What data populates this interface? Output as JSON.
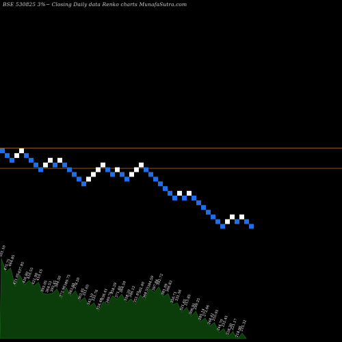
{
  "header": {
    "title": "BSE 530825 3%~   Closing Daily data  Renko  charts MunafaSutra.com"
  },
  "chart_data": {
    "type": "renko",
    "title": "BSE 530825 3%~   Closing Daily data  Renko  charts MunafaSutra.com",
    "colors": {
      "up": "#ffffff",
      "down": "#1f6fe8",
      "reference_line": "#8a5a1a",
      "volume_fill": "#0b3d0b",
      "background": "#000000"
    },
    "reference_lines": [
      0,
      -4
    ],
    "bricks": [
      {
        "dir": "down",
        "level": 0
      },
      {
        "dir": "down",
        "level": -1
      },
      {
        "dir": "down",
        "level": -2
      },
      {
        "dir": "up",
        "level": -1
      },
      {
        "dir": "up",
        "level": 0
      },
      {
        "dir": "down",
        "level": -1
      },
      {
        "dir": "down",
        "level": -2
      },
      {
        "dir": "down",
        "level": -3
      },
      {
        "dir": "down",
        "level": -4
      },
      {
        "dir": "up",
        "level": -3
      },
      {
        "dir": "up",
        "level": -2
      },
      {
        "dir": "down",
        "level": -3
      },
      {
        "dir": "up",
        "level": -2
      },
      {
        "dir": "down",
        "level": -3
      },
      {
        "dir": "down",
        "level": -4
      },
      {
        "dir": "down",
        "level": -5
      },
      {
        "dir": "down",
        "level": -6
      },
      {
        "dir": "down",
        "level": -7
      },
      {
        "dir": "up",
        "level": -6
      },
      {
        "dir": "up",
        "level": -5
      },
      {
        "dir": "up",
        "level": -4
      },
      {
        "dir": "up",
        "level": -3
      },
      {
        "dir": "down",
        "level": -4
      },
      {
        "dir": "down",
        "level": -5
      },
      {
        "dir": "up",
        "level": -4
      },
      {
        "dir": "down",
        "level": -5
      },
      {
        "dir": "down",
        "level": -6
      },
      {
        "dir": "up",
        "level": -5
      },
      {
        "dir": "up",
        "level": -4
      },
      {
        "dir": "up",
        "level": -3
      },
      {
        "dir": "down",
        "level": -4
      },
      {
        "dir": "down",
        "level": -5
      },
      {
        "dir": "down",
        "level": -6
      },
      {
        "dir": "down",
        "level": -7
      },
      {
        "dir": "down",
        "level": -8
      },
      {
        "dir": "down",
        "level": -9
      },
      {
        "dir": "down",
        "level": -10
      },
      {
        "dir": "up",
        "level": -9
      },
      {
        "dir": "down",
        "level": -10
      },
      {
        "dir": "up",
        "level": -9
      },
      {
        "dir": "down",
        "level": -10
      },
      {
        "dir": "down",
        "level": -11
      },
      {
        "dir": "down",
        "level": -12
      },
      {
        "dir": "down",
        "level": -13
      },
      {
        "dir": "down",
        "level": -14
      },
      {
        "dir": "down",
        "level": -15
      },
      {
        "dir": "down",
        "level": -16
      },
      {
        "dir": "up",
        "level": -15
      },
      {
        "dir": "up",
        "level": -14
      },
      {
        "dir": "down",
        "level": -15
      },
      {
        "dir": "up",
        "level": -14
      },
      {
        "dir": "down",
        "level": -15
      },
      {
        "dir": "down",
        "level": -16
      }
    ],
    "volume_labels": [
      "501.10",
      "475.75",
      "464.85",
      "421.05",
      "437.85",
      "426.80",
      "416.55",
      "421.90",
      "410.15",
      "393.05",
      "364.53",
      "393.45",
      "384.50",
      "372.96",
      "389.75",
      "383.60",
      "378.20",
      "363.45",
      "351.65",
      "343.10",
      "331.76",
      "324.48",
      "336.41",
      "349.75",
      "358.29",
      "371.40",
      "364.50",
      "358.20",
      "346.12",
      "351.87",
      "361.40",
      "368.55",
      "384.59",
      "397.84",
      "392.72",
      "381.09",
      "366.83",
      "350.71",
      "331.56",
      "321.65",
      "313.85",
      "306.91",
      "299.25",
      "285.14",
      "272.66",
      "268.41",
      "255.91",
      "244.70",
      "232.45",
      "228.30",
      "221.17",
      "218.90",
      "215.32"
    ]
  }
}
